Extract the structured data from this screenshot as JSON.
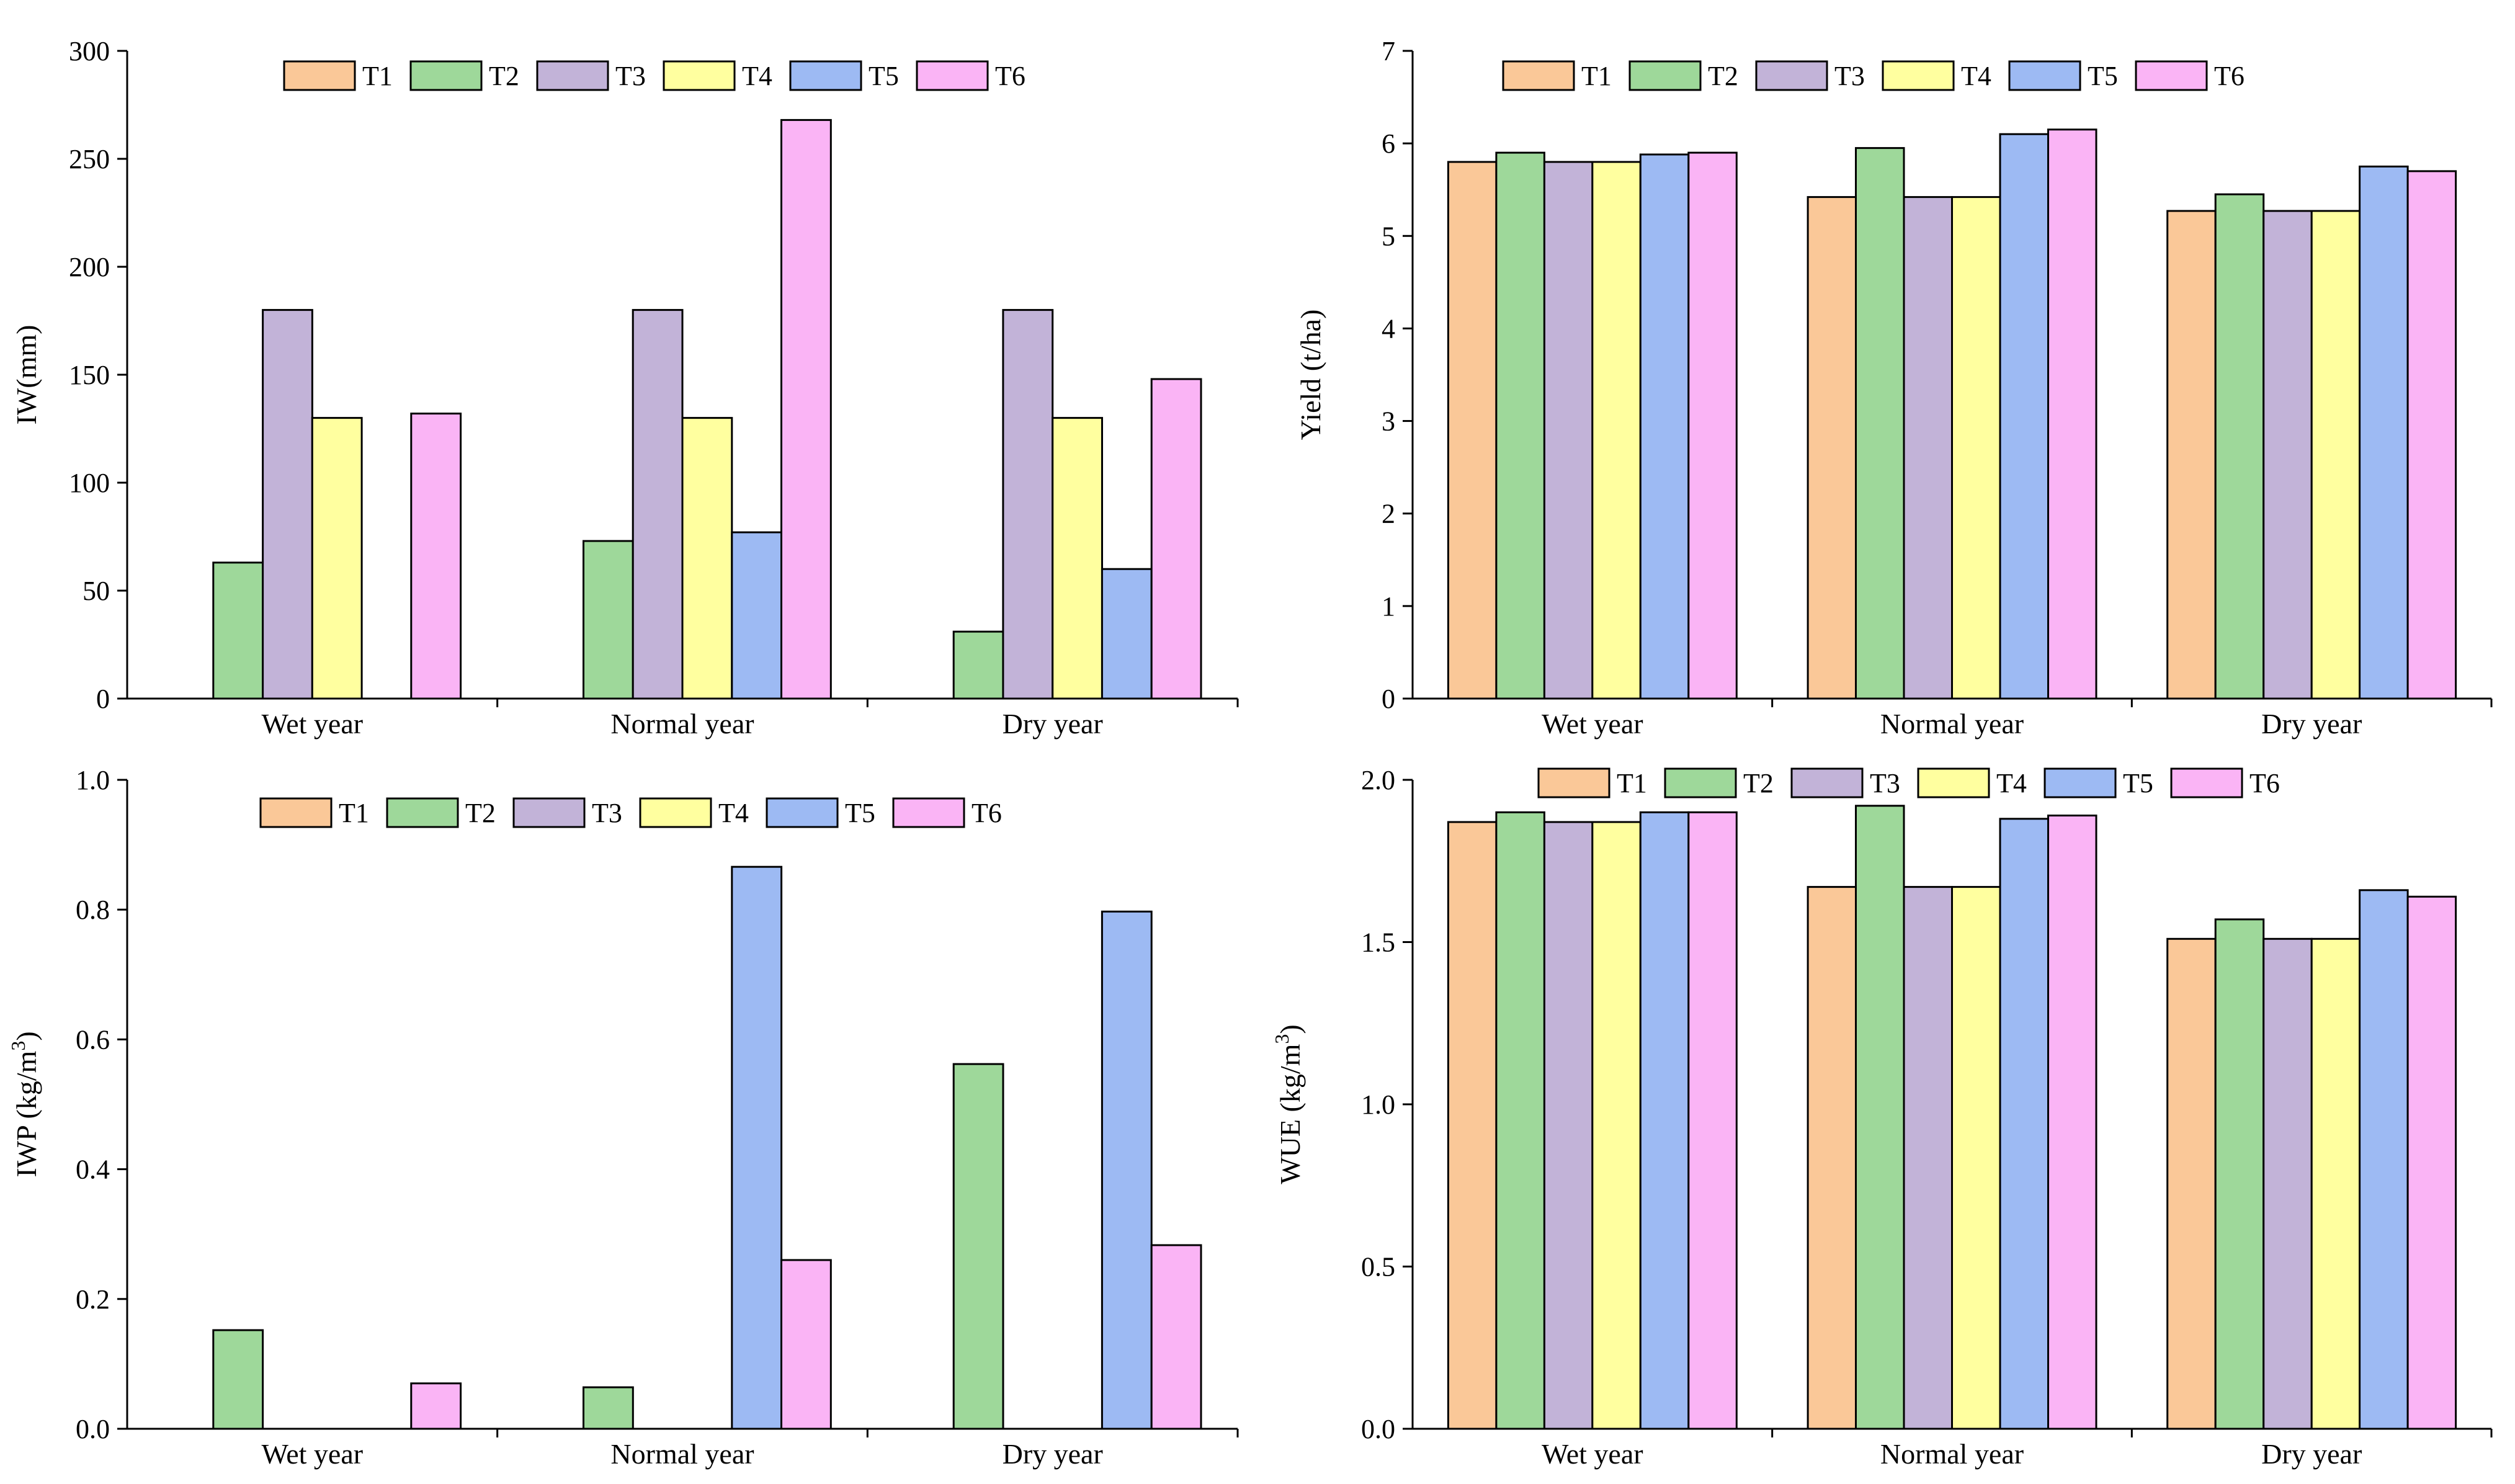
{
  "legend": [
    "T1",
    "T2",
    "T3",
    "T4",
    "T5",
    "T6"
  ],
  "colors": [
    "#FAC898",
    "#9ED89A",
    "#C2B3D8",
    "#FFFF9F",
    "#9DBAF3",
    "#FAB4F5"
  ],
  "chart_data": [
    {
      "id": "iw",
      "type": "bar",
      "title": "",
      "ylabel": "IW(mm)",
      "categories": [
        "Wet year",
        "Normal year",
        "Dry year"
      ],
      "ylim": [
        0,
        300
      ],
      "yticks": [
        0,
        50,
        100,
        150,
        200,
        250,
        300
      ],
      "ytick_labels": [
        "0",
        "50",
        "100",
        "150",
        "200",
        "250",
        "300"
      ],
      "legend_position": "top",
      "series": [
        {
          "name": "T1",
          "values": [
            0,
            0,
            0
          ]
        },
        {
          "name": "T2",
          "values": [
            63,
            73,
            31
          ]
        },
        {
          "name": "T3",
          "values": [
            180,
            180,
            180
          ]
        },
        {
          "name": "T4",
          "values": [
            130,
            130,
            130
          ]
        },
        {
          "name": "T5",
          "values": [
            0,
            77,
            60
          ]
        },
        {
          "name": "T6",
          "values": [
            132,
            268,
            148
          ]
        }
      ]
    },
    {
      "id": "yield",
      "type": "bar",
      "title": "",
      "ylabel": "Yield (t/ha)",
      "categories": [
        "Wet year",
        "Normal year",
        "Dry year"
      ],
      "ylim": [
        0,
        7
      ],
      "yticks": [
        0,
        1,
        2,
        3,
        4,
        5,
        6,
        7
      ],
      "ytick_labels": [
        "0",
        "1",
        "2",
        "3",
        "4",
        "5",
        "6",
        "7"
      ],
      "legend_position": "top",
      "series": [
        {
          "name": "T1",
          "values": [
            5.8,
            5.42,
            5.27
          ]
        },
        {
          "name": "T2",
          "values": [
            5.9,
            5.95,
            5.45
          ]
        },
        {
          "name": "T3",
          "values": [
            5.8,
            5.42,
            5.27
          ]
        },
        {
          "name": "T4",
          "values": [
            5.8,
            5.42,
            5.27
          ]
        },
        {
          "name": "T5",
          "values": [
            5.88,
            6.1,
            5.75
          ]
        },
        {
          "name": "T6",
          "values": [
            5.9,
            6.15,
            5.7
          ]
        }
      ]
    },
    {
      "id": "iwp",
      "type": "bar",
      "title": "",
      "ylabel": "IWP (kg/m",
      "ylabel_sup": "3",
      "ylabel_end": ")",
      "categories": [
        "Wet year",
        "Normal year",
        "Dry year"
      ],
      "ylim": [
        0,
        1.0
      ],
      "yticks": [
        0,
        0.2,
        0.4,
        0.6,
        0.8,
        1.0
      ],
      "ytick_labels": [
        "0.0",
        "0.2",
        "0.4",
        "0.6",
        "0.8",
        "1.0"
      ],
      "legend_position": "top",
      "series": [
        {
          "name": "T1",
          "values": [
            0,
            0,
            0
          ]
        },
        {
          "name": "T2",
          "values": [
            0.152,
            0.064,
            0.562
          ]
        },
        {
          "name": "T3",
          "values": [
            0,
            0,
            0
          ]
        },
        {
          "name": "T4",
          "values": [
            0,
            0,
            0
          ]
        },
        {
          "name": "T5",
          "values": [
            0,
            0.866,
            0.797
          ]
        },
        {
          "name": "T6",
          "values": [
            0.07,
            0.26,
            0.283
          ]
        }
      ]
    },
    {
      "id": "wue",
      "type": "bar",
      "title": "",
      "ylabel": "WUE (kg/m",
      "ylabel_sup": "3",
      "ylabel_end": ")",
      "categories": [
        "Wet year",
        "Normal year",
        "Dry year"
      ],
      "ylim": [
        0,
        2.0
      ],
      "yticks": [
        0,
        0.5,
        1.0,
        1.5,
        2.0
      ],
      "ytick_labels": [
        "0.0",
        "0.5",
        "1.0",
        "1.5",
        "2.0"
      ],
      "legend_position": "top",
      "series": [
        {
          "name": "T1",
          "values": [
            1.87,
            1.67,
            1.51
          ]
        },
        {
          "name": "T2",
          "values": [
            1.9,
            1.92,
            1.57
          ]
        },
        {
          "name": "T3",
          "values": [
            1.87,
            1.67,
            1.51
          ]
        },
        {
          "name": "T4",
          "values": [
            1.87,
            1.67,
            1.51
          ]
        },
        {
          "name": "T5",
          "values": [
            1.9,
            1.88,
            1.66
          ]
        },
        {
          "name": "T6",
          "values": [
            1.9,
            1.89,
            1.64
          ]
        }
      ]
    }
  ]
}
